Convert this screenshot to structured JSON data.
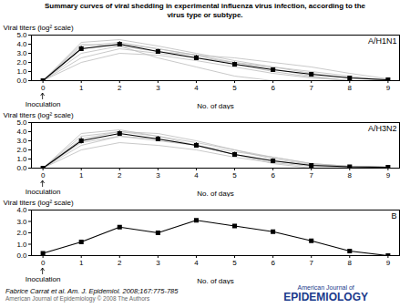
{
  "title": "Summary curves of viral shedding in experimental influenza virus infection, according to the\nvirus type or subtype.",
  "subtitle": "Fabrice Carrat et al. Am. J. Epidemiol. 2008;167:775-785",
  "annotations": [
    "American Journal of Epidemiology © 2008 The Authors",
    "American Journal of",
    "EPIDEMIOLOGY"
  ],
  "chart_data": [
    {
      "type": "line",
      "title": "A/H1N1",
      "xlabel": "No. of days",
      "ylabel": "Viral titers (log² scale)",
      "annotations": [
        "Inoculation"
      ],
      "x": [
        0,
        1,
        2,
        3,
        4,
        5,
        6,
        7,
        8,
        9
      ],
      "xlim": [
        -0.3,
        9.3
      ],
      "xticks": [
        0,
        1,
        2,
        3,
        4,
        5,
        6,
        7,
        8,
        9
      ],
      "ylim": [
        0,
        5.0
      ],
      "yticks": [
        {
          "value": 0.0,
          "label": "0.0"
        },
        {
          "value": 1.0,
          "label": "1.0"
        },
        {
          "value": 2.0,
          "label": "2.0"
        },
        {
          "value": 3.0,
          "label": "3.0"
        },
        {
          "value": 4.0,
          "label": "4.0"
        },
        {
          "value": 5.0,
          "label": "5.0"
        }
      ],
      "series": [
        {
          "color": "#bbbbbb",
          "values": [
            0.0,
            4.0,
            3.8,
            2.5,
            1.5,
            0.5,
            0.0,
            0.0,
            0.0,
            0.0
          ]
        },
        {
          "color": "#bbbbbb",
          "values": [
            0.0,
            3.8,
            4.2,
            3.5,
            2.8,
            2.0,
            1.3,
            0.5,
            0.0,
            0.0
          ]
        },
        {
          "color": "#bbbbbb",
          "values": [
            0.0,
            2.5,
            3.5,
            3.0,
            2.5,
            2.0,
            1.5,
            1.0,
            0.5,
            0.0
          ]
        },
        {
          "color": "#bbbbbb",
          "values": [
            0.0,
            3.0,
            3.8,
            3.2,
            2.8,
            2.5,
            2.0,
            1.5,
            0.8,
            0.2
          ]
        },
        {
          "color": "#bbbbbb",
          "values": [
            0.0,
            4.2,
            4.5,
            3.8,
            3.0,
            2.2,
            1.5,
            0.8,
            0.3,
            0.0
          ]
        },
        {
          "color": "#bbbbbb",
          "values": [
            0.0,
            2.0,
            3.0,
            2.8,
            2.2,
            1.5,
            0.8,
            0.3,
            0.0,
            0.0
          ]
        },
        {
          "color": "#bbbbbb",
          "values": [
            0.0,
            3.5,
            4.0,
            3.5,
            2.8,
            1.8,
            1.0,
            0.4,
            0.0,
            0.0
          ]
        },
        {
          "color": "#000000",
          "marker": "square",
          "values": [
            0.0,
            3.5,
            4.0,
            3.2,
            2.5,
            1.8,
            1.2,
            0.7,
            0.3,
            0.1
          ],
          "error": [
            0.0,
            0.3,
            0.3,
            0.25,
            0.3,
            0.25,
            0.2,
            0.2,
            0.1,
            0.05
          ]
        }
      ]
    },
    {
      "type": "line",
      "title": "A/H3N2",
      "xlabel": "No. of days",
      "ylabel": "Viral titers (log² scale)",
      "annotations": [
        "Inoculation"
      ],
      "x": [
        0,
        1,
        2,
        3,
        4,
        5,
        6,
        7,
        8,
        9
      ],
      "xlim": [
        -0.3,
        9.3
      ],
      "xticks": [
        0,
        1,
        2,
        3,
        4,
        5,
        6,
        7,
        8,
        9
      ],
      "ylim": [
        0,
        5.0
      ],
      "yticks": [
        {
          "value": 0.0,
          "label": "0.0"
        },
        {
          "value": 1.0,
          "label": "1.0"
        },
        {
          "value": 2.0,
          "label": "2.0"
        },
        {
          "value": 3.0,
          "label": "3.0"
        },
        {
          "value": 4.0,
          "label": "4.0"
        },
        {
          "value": 5.0,
          "label": "5.0"
        }
      ],
      "series": [
        {
          "color": "#bbbbbb",
          "values": [
            0.0,
            3.5,
            4.0,
            3.5,
            2.5,
            1.5,
            0.5,
            0.0,
            0.0,
            0.0
          ]
        },
        {
          "color": "#bbbbbb",
          "values": [
            0.0,
            2.5,
            3.5,
            3.0,
            2.5,
            1.8,
            1.2,
            0.5,
            0.2,
            0.1
          ]
        },
        {
          "color": "#bbbbbb",
          "values": [
            0.0,
            3.2,
            4.0,
            3.8,
            3.0,
            2.0,
            1.0,
            0.4,
            0.2,
            0.1
          ]
        },
        {
          "color": "#bbbbbb",
          "values": [
            0.0,
            2.0,
            2.8,
            2.5,
            2.0,
            1.2,
            0.6,
            0.2,
            0.1,
            0.0
          ]
        },
        {
          "color": "#bbbbbb",
          "values": [
            0.0,
            3.8,
            4.2,
            3.5,
            2.8,
            2.0,
            1.2,
            0.5,
            0.2,
            0.1
          ]
        },
        {
          "color": "#bbbbbb",
          "values": [
            0.0,
            2.8,
            3.5,
            3.2,
            2.5,
            1.5,
            0.8,
            0.3,
            0.1,
            0.05
          ]
        },
        {
          "color": "#000000",
          "marker": "square",
          "values": [
            0.0,
            3.0,
            3.8,
            3.2,
            2.5,
            1.5,
            0.8,
            0.3,
            0.15,
            0.1
          ],
          "error": [
            0.0,
            0.35,
            0.3,
            0.3,
            0.3,
            0.25,
            0.25,
            0.2,
            0.1,
            0.05
          ]
        }
      ]
    },
    {
      "type": "line",
      "title": "B",
      "xlabel": "No. of days",
      "ylabel": "Viral titers (log² scale)",
      "annotations": [
        "Inoculation"
      ],
      "x": [
        0,
        1,
        2,
        3,
        4,
        5,
        6,
        7,
        8,
        9
      ],
      "xlim": [
        -0.3,
        9.3
      ],
      "xticks": [
        0,
        1,
        2,
        3,
        4,
        5,
        6,
        7,
        8,
        9
      ],
      "ylim": [
        0,
        4.0
      ],
      "yticks": [
        {
          "value": 0.0,
          "label": "0.0"
        },
        {
          "value": 1.0,
          "label": "1.0"
        },
        {
          "value": 2.0,
          "label": "2.0"
        },
        {
          "value": 3.0,
          "label": "3.0"
        },
        {
          "value": 4.0,
          "label": "4.0"
        }
      ],
      "series": [
        {
          "color": "#000000",
          "marker": "square",
          "values": [
            0.2,
            1.2,
            2.5,
            2.0,
            3.1,
            2.6,
            2.1,
            1.3,
            0.4,
            0.0
          ],
          "error": [
            0.0,
            0.0,
            0.0,
            0.0,
            0.0,
            0.0,
            0.0,
            0.0,
            0.0,
            0.0
          ]
        }
      ]
    }
  ]
}
